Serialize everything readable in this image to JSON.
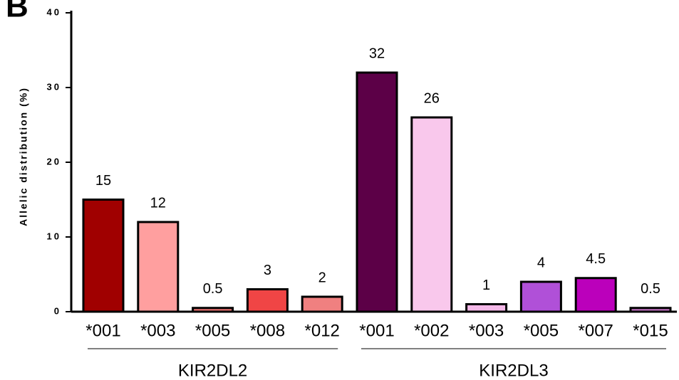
{
  "chart_data": {
    "type": "bar",
    "panel_label": "B",
    "ylabel": "Allelic distribution (%)",
    "ylim": [
      0,
      40
    ],
    "yticks": [
      0,
      10,
      20,
      30,
      40
    ],
    "groups": [
      {
        "name": "KIR2DL2",
        "categories": [
          "*001",
          "*003",
          "*005",
          "*008",
          "*012"
        ],
        "values": [
          15,
          12,
          0.5,
          3,
          2
        ],
        "colors": [
          "#a00000",
          "#ff9f9f",
          "#e8706f",
          "#f04545",
          "#f08080"
        ]
      },
      {
        "name": "KIR2DL3",
        "categories": [
          "*001",
          "*002",
          "*003",
          "*005",
          "*007",
          "*015"
        ],
        "values": [
          32,
          26,
          1,
          4,
          4.5,
          0.5
        ],
        "colors": [
          "#5c0047",
          "#f9c8ec",
          "#f4b8e8",
          "#b050d8",
          "#bb00bb",
          "#c070c0"
        ]
      }
    ]
  }
}
